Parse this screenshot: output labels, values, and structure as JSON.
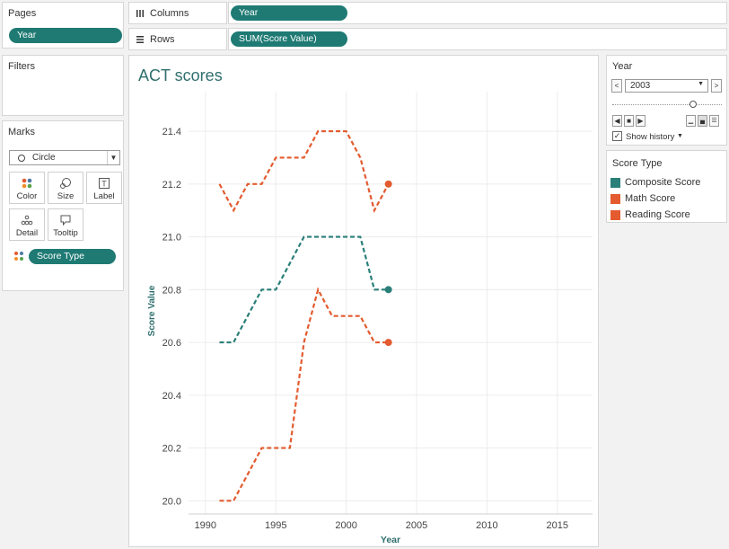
{
  "pages": {
    "title": "Pages",
    "pill": "Year"
  },
  "filters": {
    "title": "Filters"
  },
  "shelves": {
    "columns": {
      "icon": "columns-icon",
      "label": "Columns",
      "pill": "Year"
    },
    "rows": {
      "icon": "rows-icon",
      "label": "Rows",
      "pill": "SUM(Score Value)"
    }
  },
  "marks": {
    "title": "Marks",
    "mark_type": "Circle",
    "cards": [
      {
        "label": "Color",
        "icon": "color-dots-icon"
      },
      {
        "label": "Size",
        "icon": "size-icon"
      },
      {
        "label": "Label",
        "icon": "label-icon"
      },
      {
        "label": "Detail",
        "icon": "detail-icon"
      },
      {
        "label": "Tooltip",
        "icon": "tooltip-icon"
      }
    ],
    "color_pill": "Score Type"
  },
  "page_control": {
    "title": "Year",
    "value": "2003",
    "progress": 0.74,
    "show_history": "Show history",
    "show_history_checked": true
  },
  "legend": {
    "title": "Score Type",
    "items": [
      {
        "label": "Composite Score",
        "color": "#2a7f79"
      },
      {
        "label": "Math Score",
        "color": "#e35b2f"
      },
      {
        "label": "Reading Score",
        "color": "#e35b2f"
      }
    ]
  },
  "colors": {
    "teal": "#2a7f79",
    "orange": "#e35b2f",
    "pill": "#1f7a74"
  },
  "chart_data": {
    "type": "line",
    "title": "ACT scores",
    "xlabel": "Year",
    "ylabel": "Score Value",
    "xlim": [
      1988.8,
      2017.5
    ],
    "ylim": [
      19.95,
      21.55
    ],
    "xticks": [
      1990,
      1995,
      2000,
      2005,
      2010,
      2015
    ],
    "yticks": [
      20.0,
      20.2,
      20.4,
      20.6,
      20.8,
      21.0,
      21.2,
      21.4
    ],
    "ytick_labels": [
      "20.0",
      "20.2",
      "20.4",
      "20.6",
      "20.8",
      "21.0",
      "21.2",
      "21.4"
    ],
    "grid": true,
    "line_style": "dashed",
    "current_year": 2003,
    "x": [
      1991,
      1992,
      1993,
      1994,
      1995,
      1996,
      1997,
      1998,
      1999,
      2000,
      2001,
      2002,
      2003
    ],
    "series": [
      {
        "name": "Composite Score",
        "color": "#2a7f79",
        "values": [
          20.6,
          20.6,
          20.7,
          20.8,
          20.8,
          20.9,
          21.0,
          21.0,
          21.0,
          21.0,
          21.0,
          20.8,
          20.8
        ]
      },
      {
        "name": "Math Score",
        "color": "#e35b2f",
        "values": [
          20.0,
          20.0,
          20.1,
          20.2,
          20.2,
          20.2,
          20.6,
          20.8,
          20.7,
          20.7,
          20.7,
          20.6,
          20.6
        ]
      },
      {
        "name": "Reading Score",
        "color": "#e35b2f",
        "values": [
          21.2,
          21.1,
          21.2,
          21.2,
          21.3,
          21.3,
          21.3,
          21.4,
          21.4,
          21.4,
          21.3,
          21.1,
          21.2
        ]
      }
    ]
  }
}
